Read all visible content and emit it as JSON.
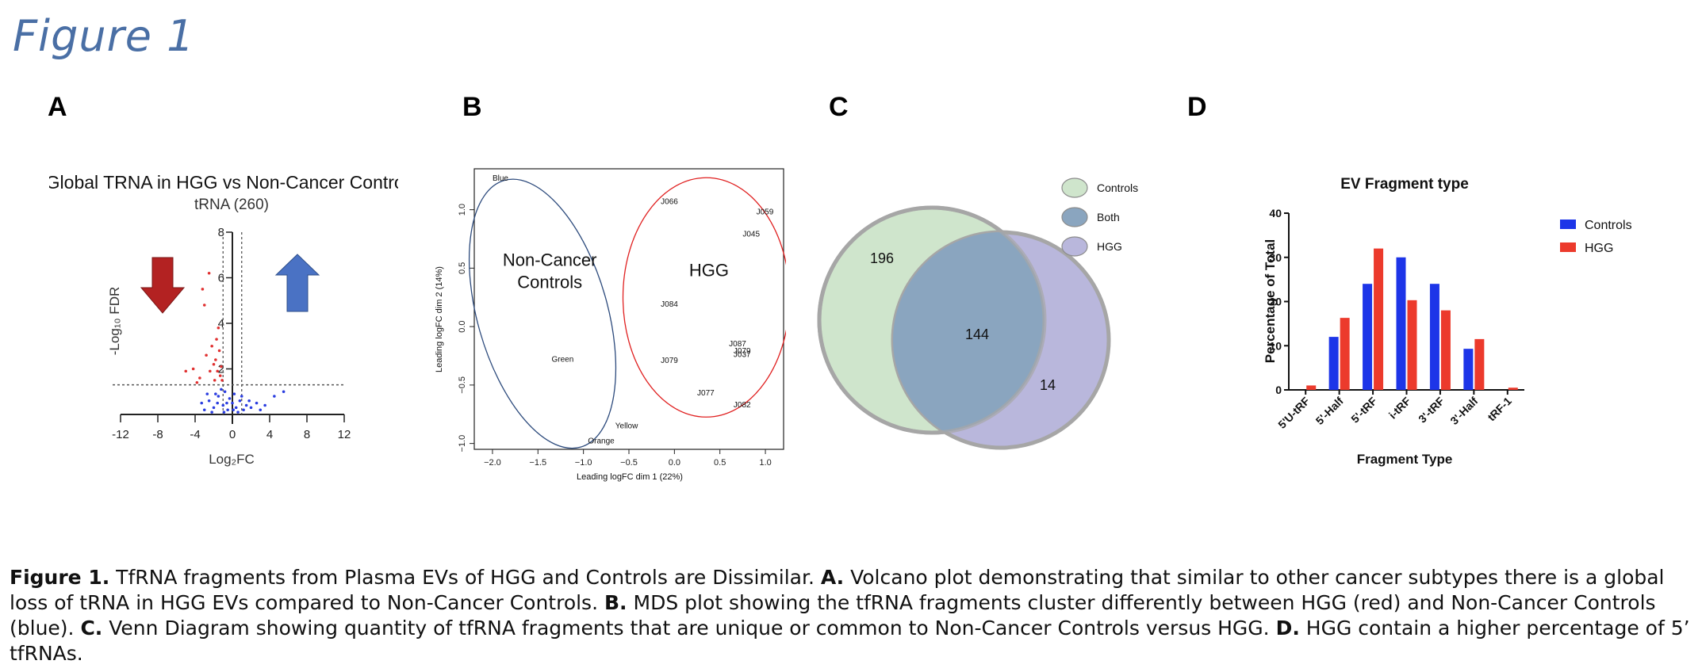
{
  "figure_title": "Figure 1",
  "panel_labels": [
    "A",
    "B",
    "C",
    "D"
  ],
  "caption": [
    {
      "b": "Figure 1.",
      "t": " TfRNA fragments from Plasma EVs of HGG and Controls are Dissimilar. "
    },
    {
      "b": "A.",
      "t": " Volcano plot demonstrating that similar to other cancer subtypes there is a global loss of tRNA in HGG EVs compared to Non-Cancer Controls. "
    },
    {
      "b": "B.",
      "t": " MDS plot showing the tfRNA fragments cluster differently between HGG (red) and Non-Cancer Controls (blue). "
    },
    {
      "b": "C.",
      "t": " Venn Diagram showing quantity of tfRNA fragments that are unique or common to Non-Cancer Controls versus HGG. "
    },
    {
      "b": "D.",
      "t": " HGG contain a higher percentage of 5’ tfRNAs."
    }
  ],
  "chart_data": [
    {
      "type": "scatter",
      "panel": "A",
      "title": "Global TRNA in HGG vs Non-Cancer Controls",
      "subtitle": "tRNA (260)",
      "xlabel": "Log₂FC",
      "ylabel": "-Log₁₀ FDR",
      "xlim": [
        -12,
        12
      ],
      "ylim": [
        0,
        8
      ],
      "xticks": [
        -12,
        -8,
        -4,
        0,
        4,
        8,
        12
      ],
      "yticks": [
        2,
        4,
        6,
        8
      ],
      "threshold_y": 1.3,
      "threshold_x": [
        -1,
        1
      ],
      "colors": {
        "significant": "#e03030",
        "non_significant": "#2a3de0",
        "down_arrow": "#b32222",
        "up_arrow": "#4a72c4"
      },
      "points_significant": [
        [
          -3.2,
          5.5
        ],
        [
          -3.0,
          4.8
        ],
        [
          -2.5,
          6.2
        ],
        [
          -2.2,
          3.0
        ],
        [
          -2.8,
          2.6
        ],
        [
          -1.8,
          2.4
        ],
        [
          -1.5,
          3.8
        ],
        [
          -1.2,
          2.1
        ],
        [
          -1.6,
          1.9
        ],
        [
          -2.0,
          2.2
        ],
        [
          -1.4,
          2.8
        ],
        [
          -3.5,
          1.6
        ],
        [
          -4.2,
          2.0
        ],
        [
          -1.3,
          1.7
        ],
        [
          -1.9,
          1.5
        ],
        [
          -2.4,
          1.9
        ],
        [
          -3.8,
          1.4
        ],
        [
          -1.7,
          3.3
        ],
        [
          -5.0,
          1.9
        ],
        [
          -1.1,
          1.5
        ]
      ],
      "points_nonsignificant": [
        [
          -2.5,
          0.6
        ],
        [
          -2.0,
          0.3
        ],
        [
          -1.5,
          0.8
        ],
        [
          -1.0,
          0.4
        ],
        [
          -0.8,
          1.0
        ],
        [
          -0.5,
          0.2
        ],
        [
          0.0,
          0.5
        ],
        [
          0.4,
          0.3
        ],
        [
          0.8,
          0.6
        ],
        [
          1.2,
          0.2
        ],
        [
          1.5,
          0.4
        ],
        [
          2.0,
          0.3
        ],
        [
          -3.0,
          0.2
        ],
        [
          -1.8,
          0.9
        ],
        [
          -1.2,
          1.1
        ],
        [
          0.2,
          0.9
        ],
        [
          -0.3,
          0.7
        ],
        [
          0.6,
          0.1
        ],
        [
          2.6,
          0.5
        ],
        [
          3.5,
          0.4
        ],
        [
          4.5,
          0.8
        ],
        [
          -2.2,
          0.1
        ],
        [
          -0.9,
          0.1
        ],
        [
          1.0,
          0.8
        ],
        [
          -1.6,
          0.5
        ],
        [
          0.1,
          0.2
        ],
        [
          -0.6,
          0.5
        ],
        [
          1.8,
          0.6
        ],
        [
          -2.7,
          0.9
        ],
        [
          -3.3,
          0.5
        ],
        [
          3.0,
          0.2
        ],
        [
          5.5,
          1.0
        ]
      ]
    },
    {
      "type": "scatter",
      "panel": "B",
      "xlabel": "Leading logFC dim 1 (22%)",
      "ylabel": "Leading logFC dim 2 (14%)",
      "xlim": [
        -2.2,
        1.2
      ],
      "ylim": [
        -1.05,
        1.35
      ],
      "xticks": [
        -2.0,
        -1.5,
        -1.0,
        -0.5,
        0.0,
        0.5,
        1.0
      ],
      "xtick_labels": [
        "−2.0",
        "−1.5",
        "−1.0",
        "−0.5",
        "0.0",
        "0.5",
        "1.0"
      ],
      "yticks": [
        -1.0,
        -0.5,
        0.0,
        0.5,
        1.0
      ],
      "ytick_labels": [
        "−1.0",
        "−0.5",
        "0.0",
        "0.5",
        "1.0"
      ],
      "groups": [
        {
          "label": "Non-Cancer Controls",
          "label_lines": [
            "Non-Cancer",
            "Controls"
          ],
          "color": "#2c4a7c",
          "points": [
            {
              "name": "Blue",
              "x": -2.0,
              "y": 1.25
            },
            {
              "name": "Green",
              "x": -1.35,
              "y": -0.3
            },
            {
              "name": "Yellow",
              "x": -0.65,
              "y": -0.87
            },
            {
              "name": "Orange",
              "x": -0.95,
              "y": -1.0
            }
          ]
        },
        {
          "label": "HGG",
          "label_lines": [
            "HGG"
          ],
          "color": "#e02020",
          "points": [
            {
              "name": "J066",
              "x": -0.15,
              "y": 1.05
            },
            {
              "name": "J059",
              "x": 0.9,
              "y": 0.96
            },
            {
              "name": "J045",
              "x": 0.75,
              "y": 0.77
            },
            {
              "name": "J084",
              "x": -0.15,
              "y": 0.17
            },
            {
              "name": "J087",
              "x": 0.6,
              "y": -0.17
            },
            {
              "name": "J079",
              "x": -0.15,
              "y": -0.31
            },
            {
              "name": "J079",
              "x": 0.65,
              "y": -0.23
            },
            {
              "name": "J037",
              "x": 0.65,
              "y": -0.26
            },
            {
              "name": "J077",
              "x": 0.25,
              "y": -0.59
            },
            {
              "name": "J082",
              "x": 0.65,
              "y": -0.69
            }
          ]
        }
      ]
    },
    {
      "type": "venn",
      "panel": "C",
      "sets": [
        {
          "name": "Controls",
          "color": "#cfe5cc",
          "only": 196
        },
        {
          "name": "HGG",
          "color": "#b9b7dc",
          "only": 14
        }
      ],
      "overlap": {
        "name": "Both",
        "color": "#8aa5bf",
        "value": 144
      },
      "legend": [
        "Controls",
        "Both",
        "HGG"
      ]
    },
    {
      "type": "bar",
      "panel": "D",
      "title": "EV Fragment type",
      "xlabel": "Fragment Type",
      "ylabel": "Percentage of Total",
      "ylim": [
        0,
        40
      ],
      "yticks": [
        0,
        10,
        20,
        30,
        40
      ],
      "categories": [
        "5'U-tRF",
        "5'-Half",
        "5'-tRF",
        "i-tRF",
        "3'-tRF",
        "3'-Half",
        "tRF-1"
      ],
      "series": [
        {
          "name": "Controls",
          "color": "#1d35e8",
          "values": [
            0,
            12,
            24,
            30,
            24,
            9.3,
            0
          ]
        },
        {
          "name": "HGG",
          "color": "#ec3a2c",
          "values": [
            1,
            16.3,
            32,
            20.3,
            18,
            11.5,
            0.5
          ]
        }
      ]
    }
  ]
}
